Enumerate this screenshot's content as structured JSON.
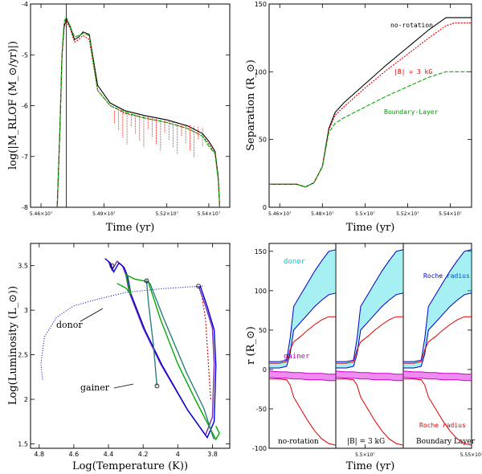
{
  "chart_data": [
    {
      "panel": "top-left",
      "type": "line",
      "xlabel": "Time (yr)",
      "ylabel": "log(|M_RLOF (M_⊙/yr)|)",
      "xlim": [
        54550000,
        55500000
      ],
      "ylim": [
        -8,
        -4
      ],
      "xticks": [
        {
          "v": 54600000,
          "t": "5.46×10⁷"
        },
        {
          "v": 54900000,
          "t": "5.49×10⁷"
        },
        {
          "v": 55200000,
          "t": "5.52×10⁷"
        },
        {
          "v": 55400000,
          "t": "5.54×10⁷"
        }
      ],
      "yticks": [
        -8,
        -7,
        -6,
        -5,
        -4
      ],
      "vline": 54720000,
      "series": [
        {
          "color": "#000000",
          "dash": "",
          "x": [
            54677000,
            54690000,
            54700000,
            54710000,
            54720000,
            54740000,
            54760000,
            54780000,
            54800000,
            54830000,
            54870000,
            54930000,
            55000000,
            55100000,
            55200000,
            55300000,
            55370000,
            55400000,
            55430000,
            55445000,
            55452000
          ],
          "y": [
            -8,
            -6.5,
            -5,
            -4.45,
            -4.3,
            -4.45,
            -4.7,
            -4.65,
            -4.55,
            -4.6,
            -5.6,
            -5.95,
            -6.1,
            -6.2,
            -6.28,
            -6.4,
            -6.55,
            -6.7,
            -6.9,
            -7.4,
            -8
          ]
        },
        {
          "color": "#e00000",
          "dash": "2,1.5",
          "x": [
            54677000,
            54690000,
            54700000,
            54710000,
            54720000,
            54740000,
            54760000,
            54780000,
            54800000,
            54830000,
            54870000,
            54930000,
            55000000,
            55100000,
            55200000,
            55300000,
            55370000,
            55400000,
            55430000,
            55445000,
            55452000
          ],
          "y": [
            -8,
            -6.5,
            -5,
            -4.4,
            -4.32,
            -4.5,
            -4.75,
            -4.7,
            -4.62,
            -4.7,
            -5.7,
            -6.0,
            -6.15,
            -6.25,
            -6.33,
            -6.45,
            -6.6,
            -6.75,
            -6.95,
            -7.45,
            -8
          ]
        },
        {
          "color": "#00b000",
          "dash": "5,2",
          "x": [
            54677000,
            54690000,
            54700000,
            54710000,
            54720000,
            54740000,
            54760000,
            54780000,
            54800000,
            54830000,
            54870000,
            54930000,
            55000000,
            55100000,
            55200000,
            55300000,
            55370000,
            55400000,
            55430000,
            55445000,
            55452000
          ],
          "y": [
            -8,
            -6.5,
            -5,
            -4.35,
            -4.25,
            -4.45,
            -4.65,
            -4.62,
            -4.58,
            -4.62,
            -5.7,
            -6.0,
            -6.13,
            -6.25,
            -6.33,
            -6.45,
            -6.6,
            -6.8,
            -6.95,
            -7.45,
            -8
          ]
        }
      ]
    },
    {
      "panel": "top-right",
      "type": "line",
      "xlabel": "Time (yr)",
      "ylabel": "Separation (R_⊙)",
      "xlim": [
        54550000,
        55500000
      ],
      "ylim": [
        0,
        150
      ],
      "xticks": [
        {
          "v": 54600000,
          "t": "5.46×10⁷"
        },
        {
          "v": 54800000,
          "t": "5.48×10⁷"
        },
        {
          "v": 55000000,
          "t": "5.5×10⁷"
        },
        {
          "v": 55200000,
          "t": "5.52×10⁷"
        },
        {
          "v": 55400000,
          "t": "5.54×10⁷"
        }
      ],
      "yticks": [
        0,
        50,
        100,
        150
      ],
      "series": [
        {
          "name": "no-rotation",
          "color": "#000000",
          "dash": "",
          "x": [
            54550000,
            54620000,
            54680000,
            54720000,
            54760000,
            54800000,
            54830000,
            54860000,
            54900000,
            55000000,
            55100000,
            55200000,
            55300000,
            55380000,
            55420000,
            55500000
          ],
          "y": [
            17,
            17,
            17,
            15,
            18,
            30,
            58,
            70,
            77,
            91,
            105,
            118,
            131,
            140,
            140,
            140
          ]
        },
        {
          "name": "|B| = 3 kG",
          "color": "#e00000",
          "dash": "2,1.5",
          "x": [
            54550000,
            54620000,
            54680000,
            54720000,
            54760000,
            54800000,
            54830000,
            54860000,
            54900000,
            55000000,
            55100000,
            55200000,
            55300000,
            55380000,
            55420000,
            55500000
          ],
          "y": [
            17,
            17,
            17,
            15,
            18,
            30,
            57,
            68,
            74,
            88,
            101,
            113,
            125,
            134,
            136,
            136
          ]
        },
        {
          "name": "Boundary-Layer",
          "color": "#00b000",
          "dash": "5,2",
          "x": [
            54550000,
            54620000,
            54680000,
            54720000,
            54760000,
            54800000,
            54830000,
            54860000,
            54900000,
            55000000,
            55100000,
            55200000,
            55300000,
            55380000,
            55420000,
            55500000
          ],
          "y": [
            17,
            17,
            17,
            15,
            18,
            30,
            55,
            62,
            66,
            74,
            82,
            89,
            96,
            100,
            100,
            100
          ]
        }
      ]
    },
    {
      "panel": "bottom-left",
      "type": "line",
      "xlabel": "Log(Temperature (K))",
      "ylabel": "Log(Luminosity (L_⊙))",
      "xlim": [
        4.85,
        3.7
      ],
      "ylim": [
        1.45,
        3.75
      ],
      "xticks": [
        4.8,
        4.6,
        4.4,
        4.2,
        4.0,
        3.8
      ],
      "yticks": [
        1.5,
        2,
        2.5,
        3,
        3.5
      ],
      "annotations": [
        "donor",
        "gainer"
      ],
      "series": [
        {
          "color": "#0000cc",
          "dash": "1,2",
          "x": [
            4.78,
            4.79,
            4.77,
            4.7,
            4.6,
            4.45,
            4.3,
            4.1,
            3.95,
            3.85
          ],
          "y": [
            2.22,
            2.4,
            2.7,
            2.92,
            3.05,
            3.13,
            3.2,
            3.24,
            3.26,
            3.27
          ]
        },
        {
          "color": "#e00000",
          "dash": "2,2",
          "x": [
            3.88,
            3.86,
            3.84,
            3.83,
            3.82,
            3.81
          ],
          "y": [
            3.27,
            3.15,
            2.9,
            2.6,
            2.3,
            2.0
          ]
        },
        {
          "color": "#7a2fb0",
          "dash": "",
          "x": [
            3.88,
            3.84,
            3.8,
            3.79,
            3.8,
            3.84,
            3.95,
            4.1,
            4.2,
            4.25,
            4.28,
            4.3,
            4.32,
            4.35,
            4.38,
            4.4,
            4.38
          ],
          "y": [
            3.27,
            3.05,
            2.8,
            2.4,
            1.8,
            1.6,
            1.9,
            2.4,
            2.8,
            3.05,
            3.2,
            3.4,
            3.5,
            3.55,
            3.45,
            3.55,
            3.5
          ]
        },
        {
          "color": "#0000dd",
          "dash": "",
          "x": [
            3.87,
            3.83,
            3.79,
            3.78,
            3.79,
            3.83,
            3.94,
            4.09,
            4.19,
            4.24,
            4.27,
            4.29,
            4.31,
            4.34,
            4.37,
            4.39,
            4.42
          ],
          "y": [
            3.27,
            3.04,
            2.78,
            2.38,
            1.75,
            1.57,
            1.87,
            2.38,
            2.78,
            3.03,
            3.18,
            3.38,
            3.48,
            3.53,
            3.43,
            3.53,
            3.58
          ]
        },
        {
          "color": "#00aa00",
          "dash": "",
          "x": [
            4.35,
            4.3,
            4.27,
            4.3,
            4.25,
            4.17,
            4.1,
            4.0,
            3.9,
            3.82,
            3.78,
            3.76,
            3.78
          ],
          "y": [
            3.3,
            3.25,
            3.18,
            3.4,
            3.35,
            3.32,
            2.9,
            2.4,
            2.0,
            1.7,
            1.55,
            1.62,
            1.7
          ]
        },
        {
          "color": "#2f7f7f",
          "dash": "",
          "x": [
            4.12,
            4.14,
            4.17,
            4.18,
            4.16,
            4.08,
            3.95,
            3.85,
            3.8,
            3.79,
            3.8
          ],
          "y": [
            2.15,
            2.6,
            3.1,
            3.33,
            3.3,
            2.9,
            2.3,
            1.9,
            1.6,
            1.55,
            1.6
          ]
        }
      ]
    },
    {
      "panel": "bottom-right",
      "type": "line",
      "xlabel": "Time (yr)",
      "ylabel": "r (R_⊙)",
      "xlim": [
        54550000,
        55500000
      ],
      "ylim": [
        -100,
        160
      ],
      "xticks": [
        {
          "v": 55000000,
          "t": "5.5×10⁷"
        },
        {
          "v": 55500000,
          "t": "5.55×10⁷"
        }
      ],
      "yticks": [
        -100,
        -50,
        0,
        50,
        100,
        150
      ],
      "subpanels": [
        "no-rotation",
        "|B| = 3 kG",
        "Boundary Layer"
      ],
      "labels": {
        "donor": "donor",
        "gainer": "gainer",
        "roche_top": "Roche radius",
        "roche_bottom": "Roche radius"
      },
      "series": [
        {
          "name": "donor-upper",
          "color": "#0000cc",
          "x": [
            54550000,
            54700000,
            54800000,
            54850000,
            54900000,
            55000000,
            55100000,
            55200000,
            55300000,
            55400000,
            55500000
          ],
          "y": [
            10,
            10,
            12,
            40,
            80,
            95,
            110,
            125,
            138,
            150,
            152
          ]
        },
        {
          "name": "donor-lower",
          "color": "#0000cc",
          "x": [
            54550000,
            54700000,
            54800000,
            54850000,
            54900000,
            55000000,
            55100000,
            55200000,
            55300000,
            55400000,
            55500000
          ],
          "y": [
            2,
            2,
            4,
            20,
            50,
            60,
            70,
            80,
            88,
            95,
            97
          ]
        },
        {
          "name": "roche-upper-red",
          "color": "#e00000",
          "x": [
            54550000,
            54700000,
            54800000,
            54850000,
            54900000,
            55000000,
            55100000,
            55200000,
            55300000,
            55400000,
            55500000
          ],
          "y": [
            8,
            8,
            10,
            25,
            35,
            42,
            50,
            57,
            63,
            67,
            67
          ]
        },
        {
          "name": "gainer-upper",
          "color": "#cc00cc",
          "x": [
            54550000,
            54700000,
            54800000,
            54900000,
            55000000,
            55100000,
            55200000,
            55300000,
            55400000,
            55500000
          ],
          "y": [
            -2,
            -3,
            -3,
            -4,
            -4,
            -5,
            -5,
            -5,
            -6,
            -6
          ]
        },
        {
          "name": "gainer-lower",
          "color": "#cc00cc",
          "x": [
            54550000,
            54700000,
            54800000,
            54900000,
            55000000,
            55100000,
            55200000,
            55300000,
            55400000,
            55500000
          ],
          "y": [
            -10,
            -11,
            -11,
            -12,
            -12,
            -13,
            -13,
            -13,
            -14,
            -14
          ]
        },
        {
          "name": "roche-lower-red",
          "color": "#e00000",
          "x": [
            54550000,
            54700000,
            54800000,
            54850000,
            54900000,
            55000000,
            55100000,
            55200000,
            55300000,
            55400000,
            55500000
          ],
          "y": [
            -12,
            -12,
            -13,
            -20,
            -35,
            -50,
            -65,
            -78,
            -88,
            -94,
            -96
          ]
        }
      ]
    }
  ]
}
